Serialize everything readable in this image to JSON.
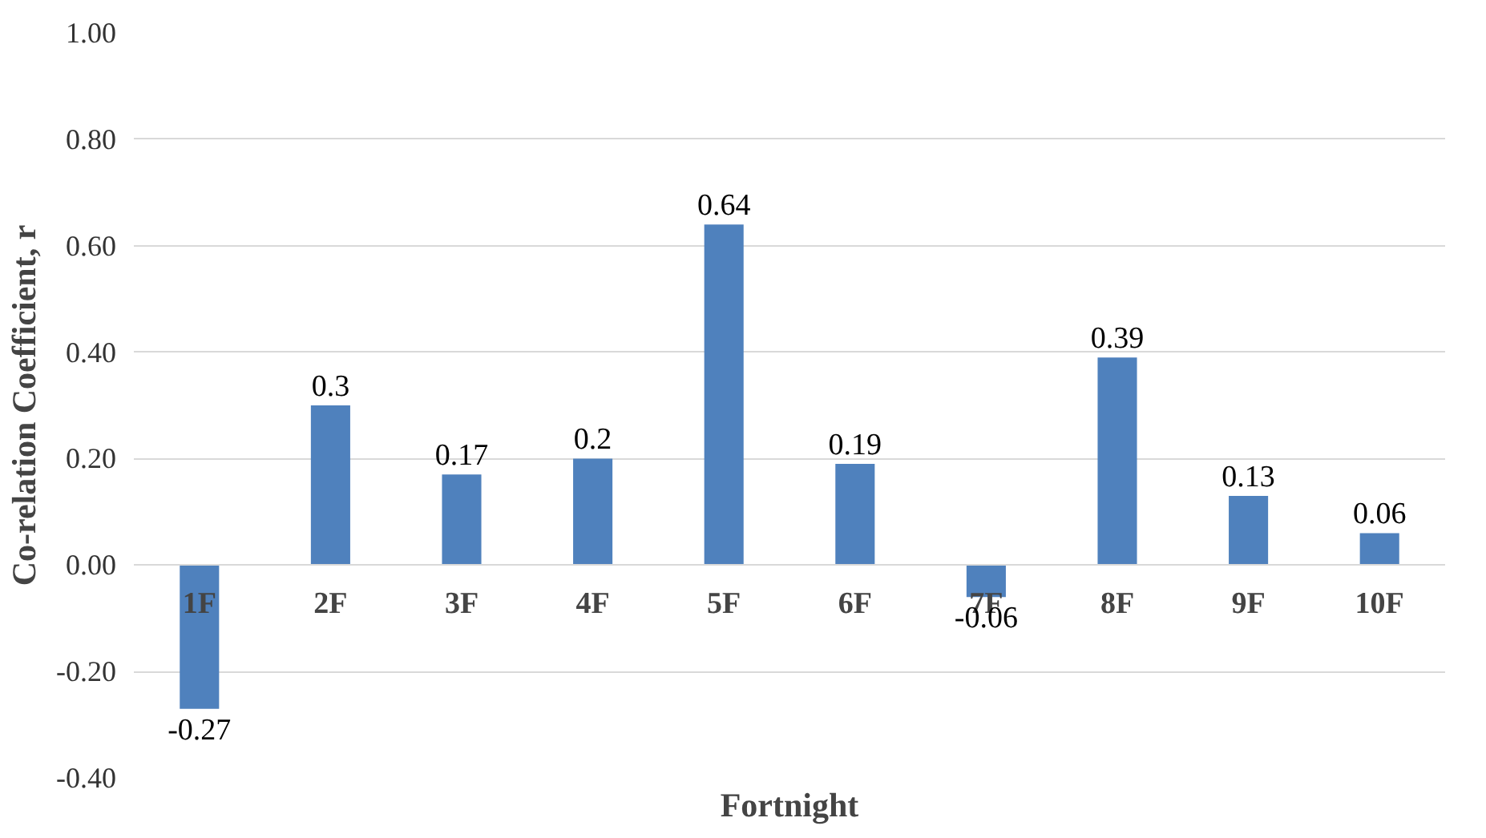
{
  "chart_data": {
    "type": "bar",
    "xlabel": "Fortnight",
    "ylabel": "Co-relation Coefficient, r",
    "categories": [
      "1F",
      "2F",
      "3F",
      "4F",
      "5F",
      "6F",
      "7F",
      "8F",
      "9F",
      "10F"
    ],
    "values": [
      -0.27,
      0.3,
      0.17,
      0.2,
      0.64,
      0.19,
      -0.06,
      0.39,
      0.13,
      0.06
    ],
    "color": "#4f81bd",
    "data_labels": true,
    "grid": "y",
    "ylim": [
      -0.4,
      1.0
    ],
    "yticks": [
      {
        "value": -0.4,
        "label": "-0.40"
      },
      {
        "value": -0.2,
        "label": "-0.20"
      },
      {
        "value": 0,
        "label": "0.00"
      },
      {
        "value": 0.2,
        "label": "0.20"
      },
      {
        "value": 0.4,
        "label": "0.40"
      },
      {
        "value": 0.6,
        "label": "0.60"
      },
      {
        "value": 0.8,
        "label": "0.80"
      },
      {
        "value": 1.0,
        "label": "1.00"
      }
    ]
  }
}
